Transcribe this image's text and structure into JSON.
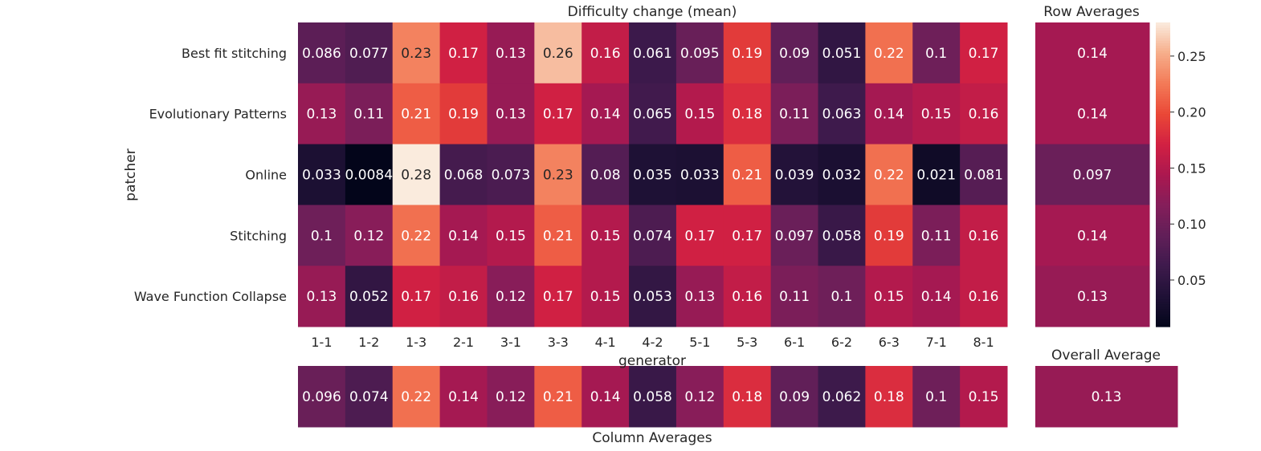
{
  "chart_data": [
    {
      "type": "heatmap",
      "title": "Difficulty change (mean)",
      "xlabel": "generator",
      "ylabel": "patcher",
      "x_categories": [
        "1-1",
        "1-2",
        "1-3",
        "2-1",
        "3-1",
        "3-3",
        "4-1",
        "4-2",
        "5-1",
        "5-3",
        "6-1",
        "6-2",
        "6-3",
        "7-1",
        "8-1"
      ],
      "y_categories": [
        "Best fit stitching",
        "Evolutionary Patterns",
        "Online",
        "Stitching",
        "Wave Function Collapse"
      ],
      "values": [
        [
          0.086,
          0.077,
          0.23,
          0.17,
          0.13,
          0.26,
          0.16,
          0.061,
          0.095,
          0.19,
          0.09,
          0.051,
          0.22,
          0.1,
          0.17
        ],
        [
          0.13,
          0.11,
          0.21,
          0.19,
          0.13,
          0.17,
          0.14,
          0.065,
          0.15,
          0.18,
          0.11,
          0.063,
          0.14,
          0.15,
          0.16
        ],
        [
          0.033,
          0.0084,
          0.28,
          0.068,
          0.073,
          0.23,
          0.08,
          0.035,
          0.033,
          0.21,
          0.039,
          0.032,
          0.22,
          0.021,
          0.081
        ],
        [
          0.1,
          0.12,
          0.22,
          0.14,
          0.15,
          0.21,
          0.15,
          0.074,
          0.17,
          0.17,
          0.097,
          0.058,
          0.19,
          0.11,
          0.16
        ],
        [
          0.13,
          0.052,
          0.17,
          0.16,
          0.12,
          0.17,
          0.15,
          0.053,
          0.13,
          0.16,
          0.11,
          0.1,
          0.15,
          0.14,
          0.16
        ]
      ],
      "color_range": [
        0.0084,
        0.28
      ],
      "colormap": "rocket"
    },
    {
      "type": "heatmap",
      "title": "Row Averages",
      "values": [
        0.14,
        0.14,
        0.097,
        0.14,
        0.13
      ]
    },
    {
      "type": "heatmap",
      "title": "Column Averages",
      "values": [
        0.096,
        0.074,
        0.22,
        0.14,
        0.12,
        0.21,
        0.14,
        0.058,
        0.12,
        0.18,
        0.09,
        0.062,
        0.18,
        0.1,
        0.15
      ]
    },
    {
      "type": "heatmap",
      "title": "Overall Average",
      "values": [
        0.13
      ]
    }
  ],
  "colorbar": {
    "ticks": [
      0.05,
      0.1,
      0.15,
      0.2,
      0.25
    ],
    "tick_labels": [
      "0.05",
      "0.10",
      "0.15",
      "0.20",
      "0.25"
    ]
  }
}
